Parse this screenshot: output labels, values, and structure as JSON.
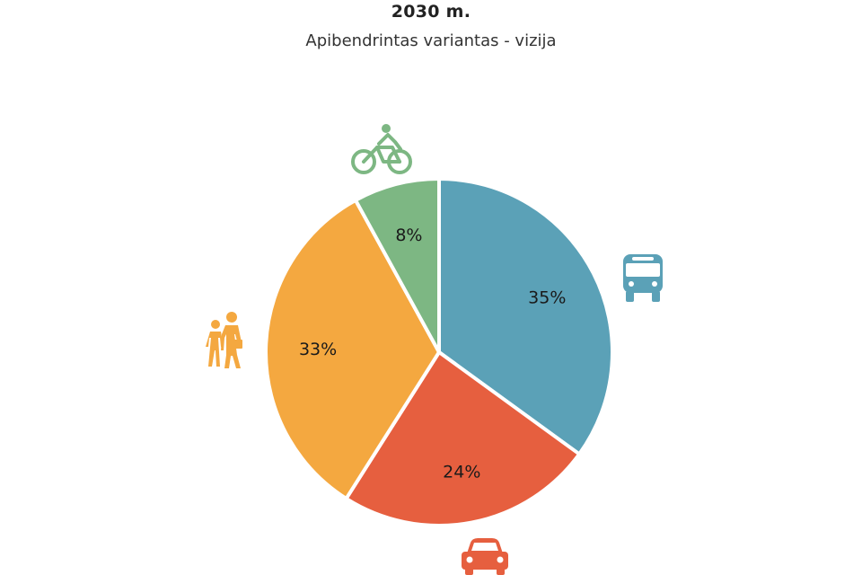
{
  "chart_data": {
    "type": "pie",
    "title": "2030 m.",
    "subtitle": "Apibendrintas variantas - vizija",
    "slices": [
      {
        "value": 35,
        "label": "35%",
        "icon": "bus-icon",
        "color": "#5ba1b7"
      },
      {
        "value": 24,
        "label": "24%",
        "icon": "car-icon",
        "color": "#e65f3f"
      },
      {
        "value": 33,
        "label": "33%",
        "icon": "pedestrians-icon",
        "color": "#f4a840"
      },
      {
        "value": 8,
        "label": "8%",
        "icon": "bicycle-icon",
        "color": "#7db783"
      }
    ]
  }
}
